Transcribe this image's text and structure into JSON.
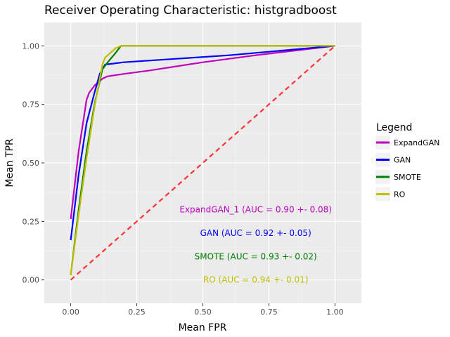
{
  "chart_data": {
    "type": "line",
    "title": "Receiver Operating Characteristic: histgradboost",
    "xlabel": "Mean FPR",
    "ylabel": "Mean TPR",
    "xlim": [
      -0.1,
      1.1
    ],
    "ylim": [
      -0.1,
      1.1
    ],
    "x_ticks": [
      0.0,
      0.25,
      0.5,
      0.75,
      1.0
    ],
    "y_ticks": [
      0.0,
      0.25,
      0.5,
      0.75,
      1.0
    ],
    "x_tick_labels": [
      "0.00",
      "0.25",
      "0.50",
      "0.75",
      "1.00"
    ],
    "y_tick_labels": [
      "0.00",
      "0.25",
      "0.50",
      "0.75",
      "1.00"
    ],
    "grid": true,
    "legend": {
      "title": "Legend",
      "placement": "right",
      "entries": [
        "ExpandGAN",
        "GAN",
        "SMOTE",
        "RO"
      ]
    },
    "series": [
      {
        "name": "ExpandGAN",
        "color": "#bf00bf",
        "x": [
          0.0,
          0.03,
          0.06,
          0.07,
          0.09,
          0.12,
          0.14,
          0.2,
          0.3,
          0.5,
          0.7,
          1.0
        ],
        "y": [
          0.26,
          0.55,
          0.77,
          0.8,
          0.83,
          0.86,
          0.87,
          0.88,
          0.895,
          0.93,
          0.96,
          1.0
        ]
      },
      {
        "name": "GAN",
        "color": "#0000ff",
        "x": [
          0.0,
          0.03,
          0.06,
          0.09,
          0.11,
          0.13,
          0.2,
          0.4,
          0.6,
          0.8,
          1.0
        ],
        "y": [
          0.17,
          0.45,
          0.67,
          0.8,
          0.88,
          0.92,
          0.93,
          0.945,
          0.96,
          0.98,
          1.0
        ]
      },
      {
        "name": "SMOTE",
        "color": "#008000",
        "x": [
          0.0,
          0.03,
          0.06,
          0.09,
          0.12,
          0.14,
          0.17,
          0.19,
          0.25,
          0.5,
          0.75,
          1.0
        ],
        "y": [
          0.02,
          0.3,
          0.55,
          0.75,
          0.9,
          0.93,
          0.97,
          1.0,
          1.0,
          1.0,
          1.0,
          1.0
        ]
      },
      {
        "name": "RO",
        "color": "#bfbf00",
        "x": [
          0.0,
          0.03,
          0.06,
          0.09,
          0.12,
          0.13,
          0.15,
          0.17,
          0.19,
          0.25,
          0.5,
          0.75,
          1.0
        ],
        "y": [
          0.02,
          0.28,
          0.52,
          0.74,
          0.92,
          0.95,
          0.97,
          0.99,
          1.0,
          1.0,
          1.0,
          1.0,
          1.0
        ]
      }
    ],
    "reference_line": {
      "color": "#ff3333",
      "x": [
        0.0,
        1.0
      ],
      "y": [
        0.0,
        1.0
      ]
    },
    "annotations": [
      {
        "text": "ExpandGAN_1 (AUC = 0.90 +- 0.08)",
        "x": 0.7,
        "y": 0.3,
        "color": "#bf00bf"
      },
      {
        "text": "GAN (AUC = 0.92 +- 0.05)",
        "x": 0.7,
        "y": 0.2,
        "color": "#0000ff"
      },
      {
        "text": "SMOTE (AUC = 0.93 +- 0.02)",
        "x": 0.7,
        "y": 0.1,
        "color": "#008000"
      },
      {
        "text": "RO (AUC = 0.94 +- 0.01)",
        "x": 0.7,
        "y": 0.0,
        "color": "#bfbf00"
      }
    ]
  }
}
